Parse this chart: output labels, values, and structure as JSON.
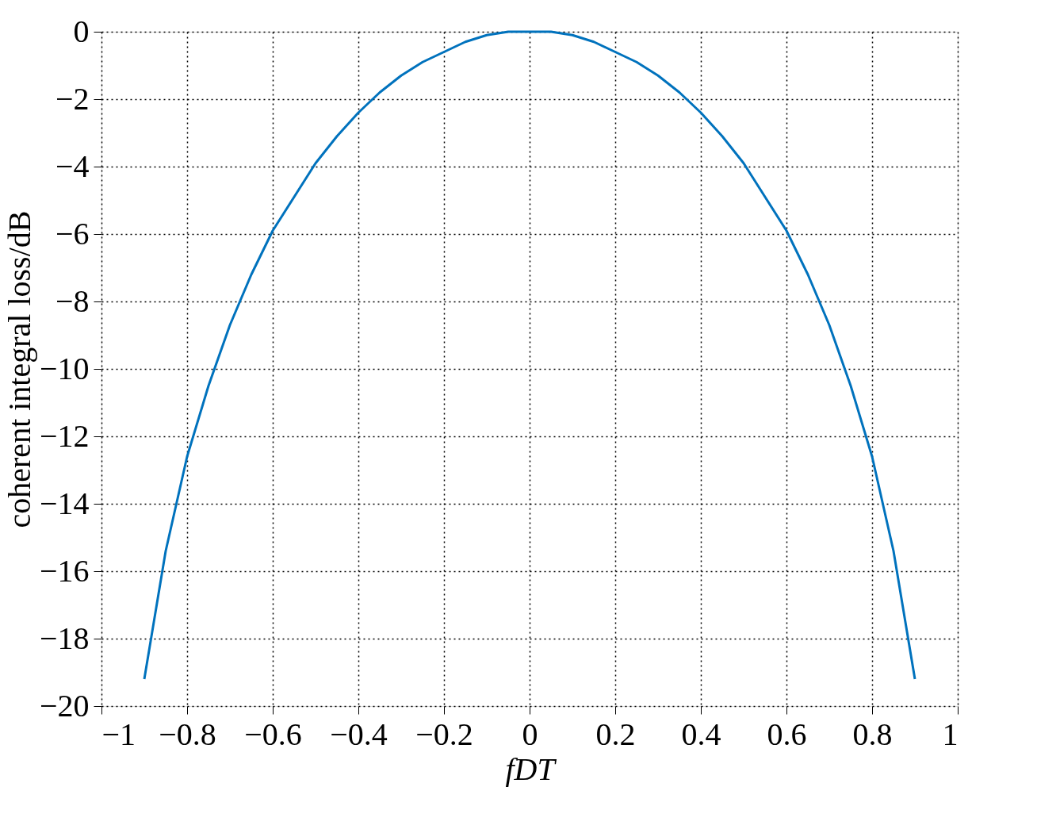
{
  "chart_data": {
    "type": "line",
    "xlabel": "fDT",
    "ylabel": "coherent integral loss/dB",
    "x": [
      -0.9,
      -0.85,
      -0.8,
      -0.75,
      -0.7,
      -0.65,
      -0.6,
      -0.55,
      -0.5,
      -0.45,
      -0.4,
      -0.35,
      -0.3,
      -0.25,
      -0.2,
      -0.15,
      -0.1,
      -0.05,
      0,
      0.05,
      0.1,
      0.15,
      0.2,
      0.25,
      0.3,
      0.35,
      0.4,
      0.45,
      0.5,
      0.55,
      0.6,
      0.65,
      0.7,
      0.75,
      0.8,
      0.85,
      0.9
    ],
    "series": [
      {
        "color": "#0072bd",
        "values": [
          -19.2,
          -15.4,
          -12.6,
          -10.5,
          -8.7,
          -7.2,
          -5.9,
          -4.9,
          -3.9,
          -3.1,
          -2.4,
          -1.8,
          -1.3,
          -0.9,
          -0.6,
          -0.3,
          -0.1,
          0,
          0,
          0,
          -0.1,
          -0.3,
          -0.6,
          -0.9,
          -1.3,
          -1.8,
          -2.4,
          -3.1,
          -3.9,
          -4.9,
          -5.9,
          -7.2,
          -8.7,
          -10.5,
          -12.6,
          -15.4,
          -19.2
        ]
      }
    ],
    "xlim": [
      -1,
      1
    ],
    "xticks": [
      -1,
      -0.8,
      -0.6,
      -0.4,
      -0.2,
      0,
      0.2,
      0.4,
      0.6,
      0.8,
      1
    ],
    "ylim": [
      -20,
      0
    ],
    "yticks": [
      -20,
      -18,
      -16,
      -14,
      -12,
      -10,
      -8,
      -6,
      -4,
      -2,
      0
    ],
    "grid": true,
    "line_style": "solid",
    "marker": "none"
  }
}
